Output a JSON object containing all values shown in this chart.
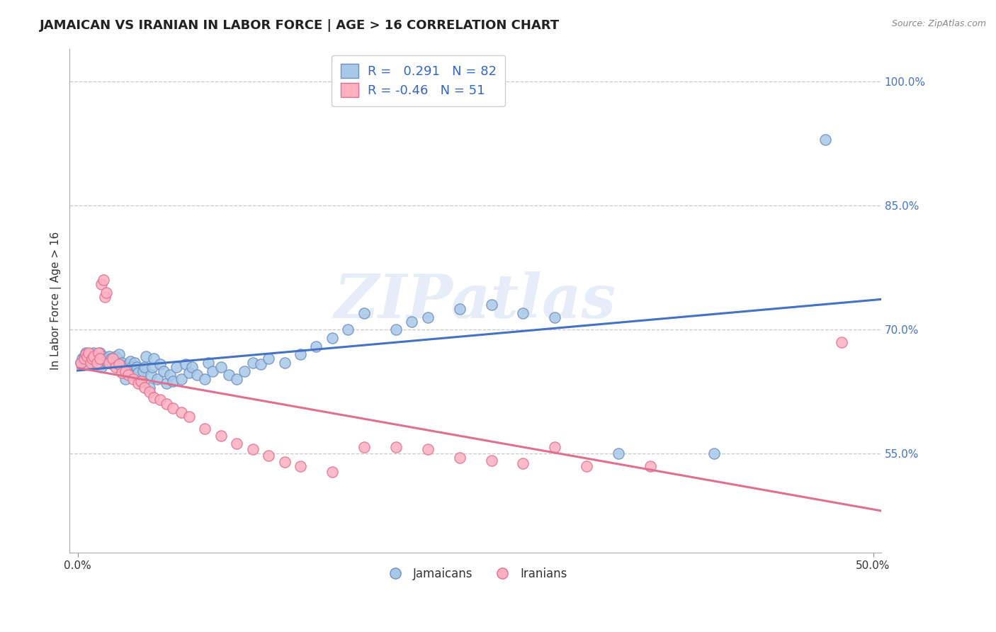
{
  "title": "JAMAICAN VS IRANIAN IN LABOR FORCE | AGE > 16 CORRELATION CHART",
  "source_text": "Source: ZipAtlas.com",
  "ylabel": "In Labor Force | Age > 16",
  "xlim": [
    -0.005,
    0.505
  ],
  "ylim": [
    0.43,
    1.04
  ],
  "xticks": [
    0.0,
    0.5
  ],
  "yticks": [
    0.55,
    0.7,
    0.85,
    1.0
  ],
  "ytick_labels": [
    "55.0%",
    "70.0%",
    "85.0%",
    "100.0%"
  ],
  "xtick_labels": [
    "0.0%",
    "50.0%"
  ],
  "background_color": "#ffffff",
  "grid_color": "#c8c8c8",
  "jamaican_color": "#a8c8e8",
  "iranian_color": "#ffb0c0",
  "jamaican_edge_color": "#7090c0",
  "iranian_edge_color": "#e07090",
  "jamaican_line_color": "#4472c4",
  "iranian_line_color": "#e07090",
  "R_jamaican": 0.291,
  "N_jamaican": 82,
  "R_iranian": -0.46,
  "N_iranian": 51,
  "watermark": "ZIPatlas",
  "jamaican_x": [
    0.002,
    0.003,
    0.004,
    0.005,
    0.006,
    0.007,
    0.008,
    0.009,
    0.01,
    0.011,
    0.012,
    0.013,
    0.014,
    0.015,
    0.016,
    0.017,
    0.018,
    0.019,
    0.02,
    0.021,
    0.022,
    0.023,
    0.024,
    0.025,
    0.026,
    0.027,
    0.028,
    0.03,
    0.031,
    0.032,
    0.033,
    0.034,
    0.035,
    0.036,
    0.037,
    0.038,
    0.04,
    0.041,
    0.042,
    0.043,
    0.045,
    0.046,
    0.047,
    0.048,
    0.05,
    0.052,
    0.054,
    0.056,
    0.058,
    0.06,
    0.062,
    0.065,
    0.068,
    0.07,
    0.072,
    0.075,
    0.08,
    0.082,
    0.085,
    0.09,
    0.095,
    0.1,
    0.105,
    0.11,
    0.115,
    0.12,
    0.13,
    0.14,
    0.15,
    0.16,
    0.17,
    0.18,
    0.2,
    0.21,
    0.22,
    0.24,
    0.26,
    0.28,
    0.3,
    0.34,
    0.4,
    0.47
  ],
  "jamaican_y": [
    0.66,
    0.665,
    0.668,
    0.672,
    0.658,
    0.663,
    0.667,
    0.67,
    0.672,
    0.665,
    0.66,
    0.668,
    0.672,
    0.655,
    0.668,
    0.662,
    0.665,
    0.66,
    0.668,
    0.665,
    0.658,
    0.662,
    0.668,
    0.665,
    0.67,
    0.655,
    0.66,
    0.64,
    0.65,
    0.658,
    0.662,
    0.655,
    0.645,
    0.66,
    0.655,
    0.648,
    0.638,
    0.65,
    0.655,
    0.668,
    0.63,
    0.645,
    0.655,
    0.665,
    0.64,
    0.658,
    0.65,
    0.635,
    0.645,
    0.638,
    0.655,
    0.64,
    0.658,
    0.648,
    0.655,
    0.645,
    0.64,
    0.66,
    0.65,
    0.655,
    0.645,
    0.64,
    0.65,
    0.66,
    0.658,
    0.665,
    0.66,
    0.67,
    0.68,
    0.69,
    0.7,
    0.72,
    0.7,
    0.71,
    0.715,
    0.725,
    0.73,
    0.72,
    0.715,
    0.55,
    0.55,
    0.93
  ],
  "iranian_x": [
    0.002,
    0.004,
    0.005,
    0.006,
    0.007,
    0.008,
    0.009,
    0.01,
    0.012,
    0.013,
    0.014,
    0.015,
    0.016,
    0.017,
    0.018,
    0.02,
    0.022,
    0.024,
    0.026,
    0.028,
    0.03,
    0.032,
    0.035,
    0.038,
    0.04,
    0.042,
    0.045,
    0.048,
    0.052,
    0.056,
    0.06,
    0.065,
    0.07,
    0.08,
    0.09,
    0.1,
    0.11,
    0.12,
    0.13,
    0.14,
    0.16,
    0.18,
    0.2,
    0.22,
    0.24,
    0.26,
    0.28,
    0.3,
    0.32,
    0.36,
    0.48
  ],
  "iranian_y": [
    0.66,
    0.665,
    0.67,
    0.668,
    0.672,
    0.66,
    0.665,
    0.668,
    0.66,
    0.672,
    0.665,
    0.755,
    0.76,
    0.74,
    0.745,
    0.66,
    0.665,
    0.655,
    0.658,
    0.648,
    0.65,
    0.645,
    0.64,
    0.635,
    0.638,
    0.63,
    0.625,
    0.618,
    0.615,
    0.61,
    0.605,
    0.6,
    0.595,
    0.58,
    0.572,
    0.562,
    0.555,
    0.548,
    0.54,
    0.535,
    0.528,
    0.558,
    0.558,
    0.555,
    0.545,
    0.542,
    0.538,
    0.558,
    0.535,
    0.535,
    0.685
  ]
}
